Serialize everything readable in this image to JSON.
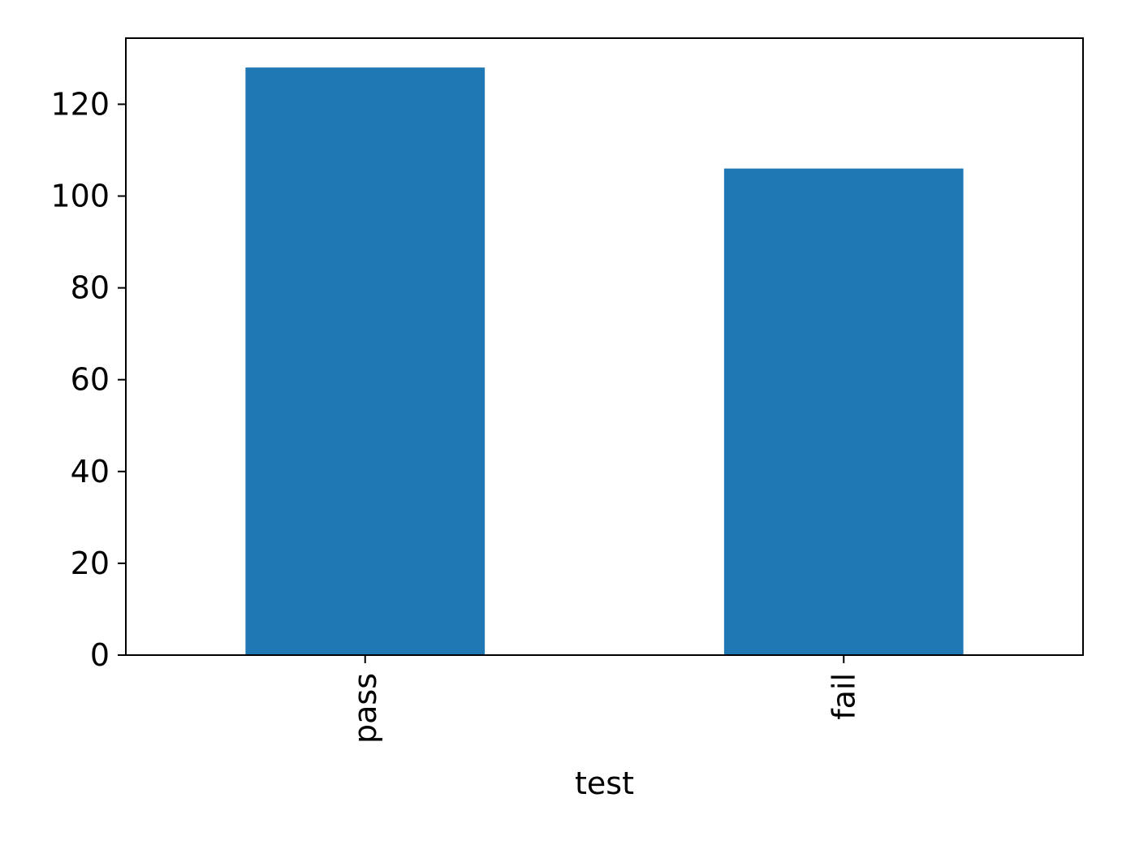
{
  "chart_data": {
    "type": "bar",
    "categories": [
      "pass",
      "fail"
    ],
    "values": [
      128,
      106
    ],
    "title": "",
    "xlabel": "test",
    "ylabel": "",
    "ylim": [
      0,
      134.4
    ],
    "yticks": [
      0,
      20,
      40,
      60,
      80,
      100,
      120
    ],
    "x_tick_rotation": "vertical",
    "bar_color": "#1f77b4",
    "grid": false,
    "legend": "none"
  }
}
